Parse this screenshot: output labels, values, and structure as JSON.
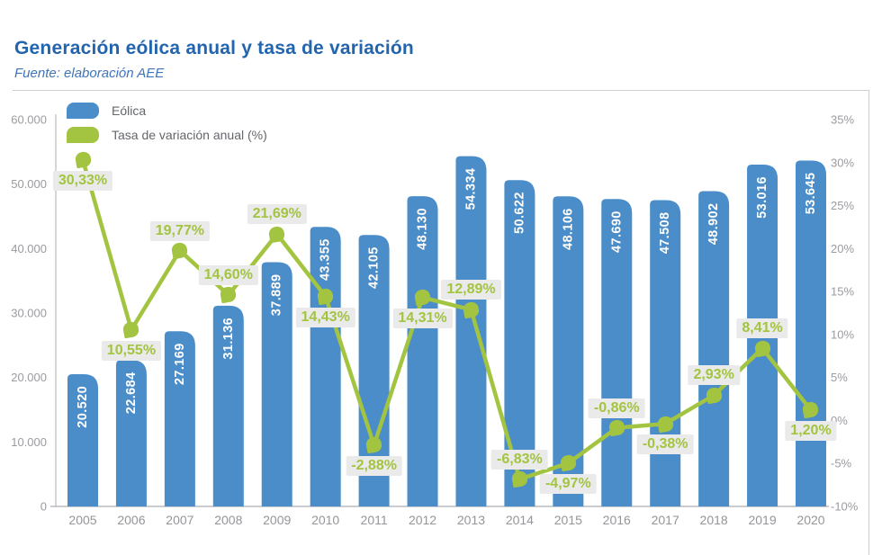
{
  "page": {
    "title": "Generación eólica anual y tasa de variación",
    "subtitle": "Fuente: elaboración AEE"
  },
  "legend": {
    "items": [
      {
        "label": "Eólica",
        "color": "#4a8dc8"
      },
      {
        "label": "Tasa de variación anual (%)",
        "color": "#a3c440"
      }
    ]
  },
  "theme": {
    "title_color": "#2265ae",
    "subtitle_color": "#3f74ba",
    "bar_color": "#4a8dc8",
    "line_color": "#a3c440",
    "badge_bg": "#eaeaea",
    "axis_text": "#9b9ba0"
  },
  "chart_data": {
    "type": "bar+line combo",
    "title": "Generación eólica anual y tasa de variación",
    "source": "Fuente: elaboración AEE",
    "categories": [
      "2005",
      "2006",
      "2007",
      "2008",
      "2009",
      "2010",
      "2011",
      "2012",
      "2013",
      "2014",
      "2015",
      "2016",
      "2017",
      "2018",
      "2019",
      "2020"
    ],
    "series": [
      {
        "name": "Eólica",
        "type": "bar",
        "axis": "left",
        "color": "#4a8dc8",
        "values": [
          20520,
          22684,
          27169,
          31136,
          37889,
          43355,
          42105,
          48130,
          54334,
          50622,
          48106,
          47690,
          47508,
          48902,
          53016,
          53645
        ],
        "labels": [
          "20.520",
          "22.684",
          "27.169",
          "31.136",
          "37.889",
          "43.355",
          "42.105",
          "48.130",
          "54.334",
          "50.622",
          "48.106",
          "47.690",
          "47.508",
          "48.902",
          "53.016",
          "53.645"
        ]
      },
      {
        "name": "Tasa de variación anual (%)",
        "type": "line",
        "axis": "right",
        "color": "#a3c440",
        "values": [
          30.33,
          10.55,
          19.77,
          14.6,
          21.69,
          14.43,
          -2.88,
          14.31,
          12.89,
          -6.83,
          -4.97,
          -0.86,
          -0.38,
          2.93,
          8.41,
          1.2
        ],
        "labels": [
          "30,33%",
          "10,55%",
          "19,77%",
          "14,60%",
          "21,69%",
          "14,43%",
          "-2,88%",
          "14,31%",
          "12,89%",
          "-6,83%",
          "-4,97%",
          "-0,86%",
          "-0,38%",
          "2,93%",
          "8,41%",
          "1,20%"
        ],
        "label_side": [
          "below",
          "below",
          "above",
          "above",
          "above",
          "below",
          "below",
          "below",
          "above",
          "above",
          "below",
          "above",
          "below",
          "above",
          "above",
          "below"
        ]
      }
    ],
    "left_axis": {
      "min": 0,
      "max": 60000,
      "ticks": [
        "0",
        "10.000",
        "20.000",
        "30.000",
        "40.000",
        "50.000",
        "60.000"
      ]
    },
    "right_axis": {
      "min": -10,
      "max": 35,
      "ticks": [
        "-10%",
        "-5%",
        "0%",
        "5%",
        "10%",
        "15%",
        "20%",
        "25%",
        "30%",
        "35%"
      ]
    },
    "grid": "off",
    "legend_position": "top-left"
  }
}
